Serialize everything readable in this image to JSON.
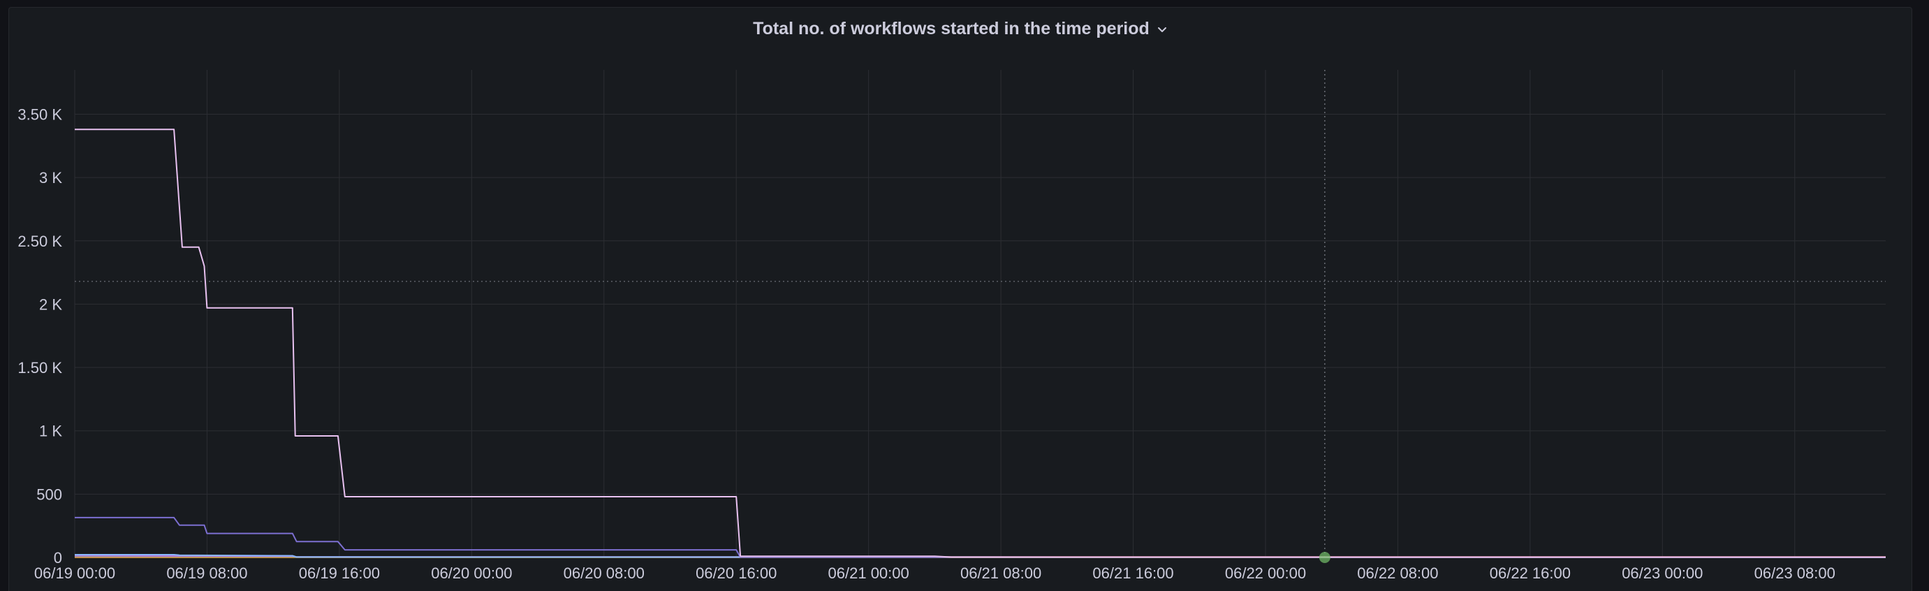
{
  "panel": {
    "title": "Total no. of workflows started in the time period",
    "menu_icon": "chevron-down-icon"
  },
  "colors": {
    "background": "#181b1f",
    "grid": "#2c2e33",
    "text": "#ccccdc",
    "threshold": "#5b5f66",
    "crosshair": "#6b6f76",
    "hover_point": "#73bf69"
  },
  "chart_data": {
    "type": "line",
    "title": "Total no. of workflows started in the time period",
    "xlabel": "",
    "ylabel": "",
    "xlim": [
      "06/19 00:00",
      "06/23 13:30"
    ],
    "ylim": [
      0,
      3850
    ],
    "x_ticks": [
      "06/19 00:00",
      "06/19 08:00",
      "06/19 16:00",
      "06/20 00:00",
      "06/20 08:00",
      "06/20 16:00",
      "06/21 00:00",
      "06/21 08:00",
      "06/21 16:00",
      "06/22 00:00",
      "06/22 08:00",
      "06/22 16:00",
      "06/23 00:00",
      "06/23 08:00"
    ],
    "y_ticks": [
      {
        "value": 0,
        "label": "0"
      },
      {
        "value": 500,
        "label": "500"
      },
      {
        "value": 1000,
        "label": "1 K"
      },
      {
        "value": 1500,
        "label": "1.50 K"
      },
      {
        "value": 2000,
        "label": "2 K"
      },
      {
        "value": 2500,
        "label": "2.50 K"
      },
      {
        "value": 3000,
        "label": "3 K"
      },
      {
        "value": 3500,
        "label": "3.50 K"
      }
    ],
    "grid": true,
    "threshold_line": 2180,
    "crosshair_x": "06/22 03:35",
    "hover_point": {
      "x": "06/22 03:35",
      "y": 0
    },
    "series": [
      {
        "color": "#e8c1f0",
        "points": [
          [
            "06/19 00:00",
            3380
          ],
          [
            "06/19 06:00",
            3380
          ],
          [
            "06/19 06:30",
            2450
          ],
          [
            "06/19 07:30",
            2450
          ],
          [
            "06/19 07:50",
            2300
          ],
          [
            "06/19 08:00",
            1970
          ],
          [
            "06/19 13:10",
            1970
          ],
          [
            "06/19 13:20",
            960
          ],
          [
            "06/19 15:55",
            960
          ],
          [
            "06/19 16:20",
            480
          ],
          [
            "06/20 16:00",
            480
          ],
          [
            "06/20 16:15",
            10
          ],
          [
            "06/21 04:00",
            10
          ],
          [
            "06/21 05:00",
            3
          ],
          [
            "06/23 13:30",
            3
          ]
        ]
      },
      {
        "color": "#7c6fd1",
        "points": [
          [
            "06/19 00:00",
            315
          ],
          [
            "06/19 06:00",
            315
          ],
          [
            "06/19 06:20",
            255
          ],
          [
            "06/19 07:50",
            255
          ],
          [
            "06/19 08:00",
            190
          ],
          [
            "06/19 13:10",
            190
          ],
          [
            "06/19 13:25",
            125
          ],
          [
            "06/19 15:55",
            125
          ],
          [
            "06/19 16:20",
            60
          ],
          [
            "06/20 16:00",
            60
          ],
          [
            "06/20 16:15",
            2
          ],
          [
            "06/23 13:30",
            2
          ]
        ]
      },
      {
        "color": "#8ab8ff",
        "points": [
          [
            "06/19 00:00",
            22
          ],
          [
            "06/19 06:00",
            22
          ],
          [
            "06/19 06:20",
            18
          ],
          [
            "06/19 13:10",
            14
          ],
          [
            "06/19 13:25",
            4
          ],
          [
            "06/23 13:30",
            2
          ]
        ]
      },
      {
        "color": "#b877d9",
        "points": [
          [
            "06/19 00:00",
            14
          ],
          [
            "06/19 13:10",
            10
          ],
          [
            "06/19 13:25",
            3
          ],
          [
            "06/23 13:30",
            1
          ]
        ]
      },
      {
        "color": "#73bf69",
        "points": [
          [
            "06/19 00:00",
            9
          ],
          [
            "06/19 13:10",
            7
          ],
          [
            "06/19 13:25",
            2
          ],
          [
            "06/23 13:30",
            1
          ]
        ]
      },
      {
        "color": "#ff7383",
        "points": [
          [
            "06/19 00:00",
            4
          ],
          [
            "06/23 13:30",
            4
          ]
        ]
      },
      {
        "color": "#f2cc0c",
        "points": [
          [
            "06/19 00:00",
            1
          ],
          [
            "06/23 13:30",
            1
          ]
        ]
      }
    ]
  }
}
